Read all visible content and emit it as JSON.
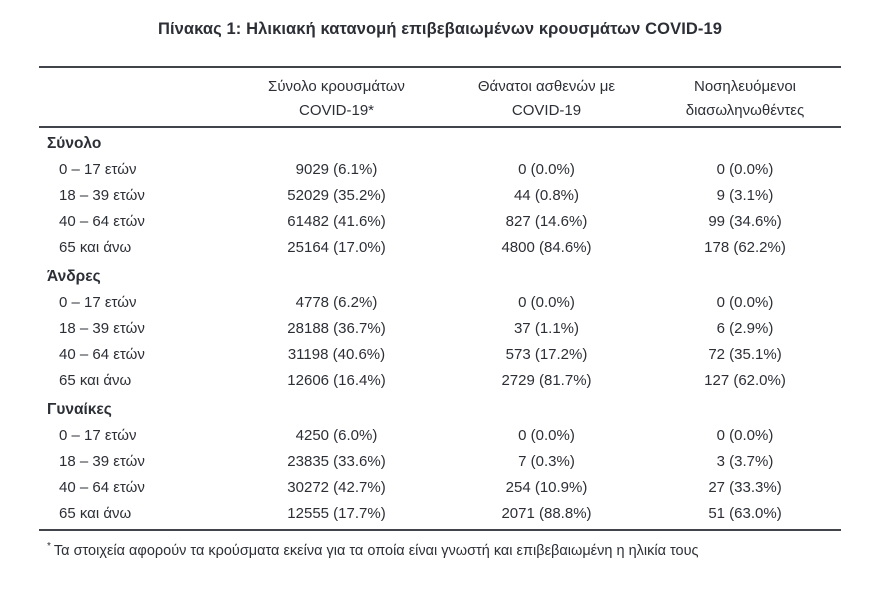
{
  "page": {
    "title": "Πίνακας 1: Ηλικιακή κατανομή επιβεβαιωμένων κρουσμάτων COVID-19"
  },
  "colors": {
    "background": "#ffffff",
    "text": "#2c2f36",
    "rule": "#41444b"
  },
  "table": {
    "header": {
      "columns": [
        {
          "line1": "Σύνολο κρουσμάτων",
          "line2": "COVID-19*"
        },
        {
          "line1": "Θάνατοι ασθενών με",
          "line2": "COVID-19"
        },
        {
          "line1": "Νοσηλευόμενοι",
          "line2": "διασωληνωθέντες"
        }
      ]
    },
    "sections": [
      {
        "label": "Σύνολο",
        "rows": [
          {
            "label": "0 – 17 ετών",
            "cases": "9029 (6.1%)",
            "deaths": "0 (0.0%)",
            "intubated": "0 (0.0%)"
          },
          {
            "label": "18 – 39 ετών",
            "cases": "52029 (35.2%)",
            "deaths": "44 (0.8%)",
            "intubated": "9 (3.1%)"
          },
          {
            "label": "40 – 64 ετών",
            "cases": "61482 (41.6%)",
            "deaths": "827 (14.6%)",
            "intubated": "99 (34.6%)"
          },
          {
            "label": "65 και άνω",
            "cases": "25164 (17.0%)",
            "deaths": "4800 (84.6%)",
            "intubated": "178 (62.2%)"
          }
        ]
      },
      {
        "label": "Άνδρες",
        "rows": [
          {
            "label": "0 – 17 ετών",
            "cases": "4778 (6.2%)",
            "deaths": "0 (0.0%)",
            "intubated": "0 (0.0%)"
          },
          {
            "label": "18 – 39 ετών",
            "cases": "28188 (36.7%)",
            "deaths": "37 (1.1%)",
            "intubated": "6 (2.9%)"
          },
          {
            "label": "40 – 64 ετών",
            "cases": "31198 (40.6%)",
            "deaths": "573 (17.2%)",
            "intubated": "72 (35.1%)"
          },
          {
            "label": "65 και άνω",
            "cases": "12606 (16.4%)",
            "deaths": "2729 (81.7%)",
            "intubated": "127 (62.0%)"
          }
        ]
      },
      {
        "label": "Γυναίκες",
        "rows": [
          {
            "label": "0 – 17 ετών",
            "cases": "4250 (6.0%)",
            "deaths": "0 (0.0%)",
            "intubated": "0 (0.0%)"
          },
          {
            "label": "18 – 39 ετών",
            "cases": "23835 (33.6%)",
            "deaths": "7 (0.3%)",
            "intubated": "3 (3.7%)"
          },
          {
            "label": "40 – 64 ετών",
            "cases": "30272 (42.7%)",
            "deaths": "254 (10.9%)",
            "intubated": "27 (33.3%)"
          },
          {
            "label": "65 και άνω",
            "cases": "12555 (17.7%)",
            "deaths": "2071 (88.8%)",
            "intubated": "51 (63.0%)"
          }
        ]
      }
    ],
    "footnote": {
      "marker": "*",
      "text": "Τα στοιχεία αφορούν τα κρούσματα εκείνα για τα οποία είναι γνωστή και επιβεβαιωμένη η ηλικία τους"
    }
  }
}
